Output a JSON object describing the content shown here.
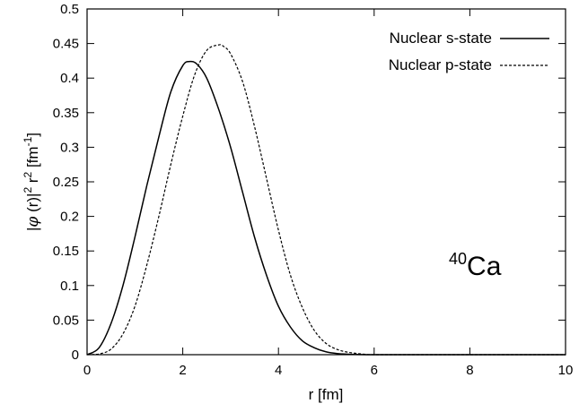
{
  "chart_data": {
    "type": "line",
    "title": "",
    "xlabel": "r [fm]",
    "ylabel_parts": {
      "open": "|",
      "phi": "φ",
      "r_paren": " (r)|",
      "sq1": "2",
      "r": " r",
      "sq2": "2",
      "unit": " [fm",
      "unit_exp": "-1",
      "close": "]"
    },
    "xlim": [
      0,
      10
    ],
    "ylim": [
      0,
      0.5
    ],
    "x_ticks": [
      0,
      2,
      4,
      6,
      8,
      10
    ],
    "x_tick_labels": [
      "0",
      "2",
      "4",
      "6",
      "8",
      "10"
    ],
    "y_ticks": [
      0,
      0.05,
      0.1,
      0.15,
      0.2,
      0.25,
      0.3,
      0.35,
      0.4,
      0.45,
      0.5
    ],
    "y_tick_labels": [
      "0",
      "0.05",
      "0.1",
      "0.15",
      "0.2",
      "0.25",
      "0.3",
      "0.35",
      "0.4",
      "0.45",
      "0.5"
    ],
    "grid": false,
    "legend_position": "top-right",
    "annotation": {
      "mass_number": "40",
      "element": "Ca"
    },
    "series": [
      {
        "name": "Nuclear s-state",
        "style": "solid",
        "color": "#000000",
        "x": [
          0,
          0.25,
          0.5,
          0.75,
          1.0,
          1.25,
          1.5,
          1.75,
          2.0,
          2.15,
          2.3,
          2.5,
          2.75,
          3.0,
          3.25,
          3.5,
          3.75,
          4.0,
          4.25,
          4.5,
          4.75,
          5.0,
          5.25,
          5.5,
          6.0,
          7.0,
          8.0,
          10.0
        ],
        "y": [
          0,
          0.01,
          0.045,
          0.1,
          0.17,
          0.245,
          0.315,
          0.38,
          0.418,
          0.424,
          0.42,
          0.4,
          0.355,
          0.3,
          0.235,
          0.17,
          0.115,
          0.07,
          0.04,
          0.02,
          0.01,
          0.004,
          0.0015,
          0.0005,
          0,
          0,
          0,
          0
        ]
      },
      {
        "name": "Nuclear p-state",
        "style": "dashed",
        "color": "#000000",
        "x": [
          0,
          0.25,
          0.5,
          0.75,
          1.0,
          1.25,
          1.5,
          1.75,
          2.0,
          2.25,
          2.5,
          2.75,
          2.85,
          3.0,
          3.25,
          3.5,
          3.75,
          4.0,
          4.25,
          4.5,
          4.75,
          5.0,
          5.25,
          5.5,
          5.75,
          6.0,
          7.0,
          8.0,
          10.0
        ],
        "y": [
          0,
          0.001,
          0.008,
          0.03,
          0.07,
          0.13,
          0.2,
          0.275,
          0.345,
          0.405,
          0.44,
          0.448,
          0.446,
          0.435,
          0.395,
          0.33,
          0.255,
          0.18,
          0.115,
          0.068,
          0.035,
          0.016,
          0.007,
          0.003,
          0.001,
          0,
          0,
          0,
          0
        ]
      }
    ]
  }
}
